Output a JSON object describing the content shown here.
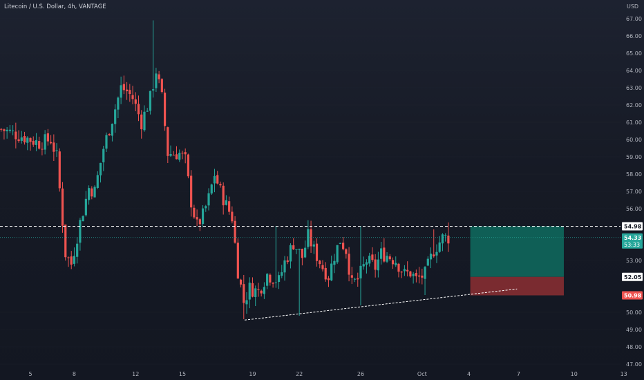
{
  "header": {
    "title": "Litecoin / U.S. Dollar, 4h, VANTAGE",
    "currency": "USD"
  },
  "colors": {
    "up": "#26a69a",
    "down": "#ef5350",
    "profit_zone": "#0f5f56",
    "loss_zone": "#7a2b30",
    "price_line": "#26a69a",
    "dashed": "#ffffff"
  },
  "price_labels": {
    "entry": "54.98",
    "last": "54.33",
    "countdown": "53:33",
    "target_level": "52.05",
    "stop": "50.98"
  },
  "chart_data": {
    "type": "candlestick",
    "title": "Litecoin / U.S. Dollar, 4h, VANTAGE",
    "ylabel": "USD",
    "ylim": [
      46.6,
      67.3
    ],
    "y_ticks": [
      67.0,
      66.0,
      65.0,
      64.0,
      63.0,
      62.0,
      61.0,
      60.0,
      59.0,
      58.0,
      57.0,
      56.0,
      53.0,
      50.0,
      49.0,
      48.0,
      47.0
    ],
    "x_tick_labels": [
      "5",
      "8",
      "12",
      "15",
      "19",
      "22",
      "26",
      "Oct",
      "4",
      "7",
      "10",
      "13"
    ],
    "x_tick_index": [
      0,
      15,
      36,
      52,
      76,
      92,
      113,
      134,
      150,
      167,
      186,
      203
    ],
    "n_bars_visible": 206,
    "keypoints": [
      [
        -10,
        60.6
      ],
      [
        -3,
        60.2
      ],
      [
        3,
        59.8
      ],
      [
        7,
        60.0
      ],
      [
        9,
        59.0
      ],
      [
        12,
        53.4
      ],
      [
        14,
        52.8
      ],
      [
        17,
        55.2
      ],
      [
        20,
        57.2
      ],
      [
        22,
        57.0
      ],
      [
        25,
        59.5
      ],
      [
        28,
        61.2
      ],
      [
        31,
        63.0
      ],
      [
        33,
        62.8
      ],
      [
        35,
        62.4
      ],
      [
        38,
        61.0
      ],
      [
        41,
        62.4
      ],
      [
        43,
        64.0
      ],
      [
        45,
        62.4
      ],
      [
        47,
        59.2
      ],
      [
        51,
        59.2
      ],
      [
        53,
        58.8
      ],
      [
        55,
        56.4
      ],
      [
        57,
        55.0
      ],
      [
        59,
        55.6
      ],
      [
        61,
        56.6
      ],
      [
        63,
        58.0
      ],
      [
        65,
        57.0
      ],
      [
        67,
        56.2
      ],
      [
        69,
        55.5
      ],
      [
        71,
        52.4
      ],
      [
        73,
        50.6
      ],
      [
        75,
        51.4
      ],
      [
        78,
        51.2
      ],
      [
        81,
        52.2
      ],
      [
        85,
        51.8
      ],
      [
        87,
        52.9
      ],
      [
        90,
        54.0
      ],
      [
        93,
        53.2
      ],
      [
        95,
        54.4
      ],
      [
        97,
        53.6
      ],
      [
        100,
        52.6
      ],
      [
        102,
        52.1
      ],
      [
        104,
        53.3
      ],
      [
        106,
        54.2
      ],
      [
        108,
        53.6
      ],
      [
        110,
        51.6
      ],
      [
        112,
        51.9
      ],
      [
        115,
        53.0
      ],
      [
        118,
        52.6
      ],
      [
        120,
        53.4
      ],
      [
        122,
        53.3
      ],
      [
        125,
        53.0
      ],
      [
        128,
        52.2
      ],
      [
        130,
        52.3
      ],
      [
        132,
        51.9
      ],
      [
        135,
        52.2
      ],
      [
        138,
        53.6
      ],
      [
        141,
        54.3
      ],
      [
        143,
        54.33
      ]
    ],
    "trend_support": {
      "from": [
        "2021-09-19",
        49.6
      ],
      "to": [
        "2021-10-07",
        51.4
      ]
    },
    "horizontal_level": 54.98,
    "last_price": 54.33,
    "position": {
      "entry": 54.98,
      "stop": 50.98,
      "middle": 52.05,
      "target_zone_top": 54.98
    }
  }
}
